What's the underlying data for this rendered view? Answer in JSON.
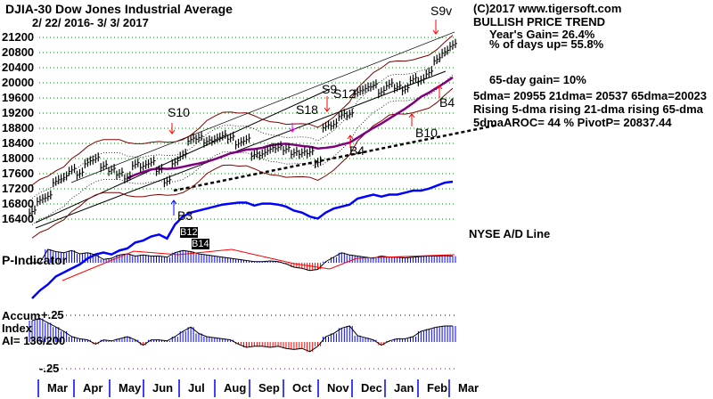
{
  "header": {
    "title": "DJIA-30  Dow Jones Industrial Average",
    "date_range": "2/ 22/ 2016- 3/ 3/ 2017"
  },
  "info": {
    "copyright": "(C)2017 www.tigersoft.com",
    "trend": "BULLISH PRICE TREND",
    "years_gain": "Year's Gain= 26.4%",
    "days_up": "% of days up= 55.8%",
    "gain65": "65-day gain= 10%",
    "dmas": "5dma= 20955 21dma= 20537 65dma=20023",
    "rising": "Rising 5-dma  rising 21-dma  rising 65-dma",
    "aroc": "5dmaAROC= 44 %  PivotP= 20837.44"
  },
  "labels": {
    "ad_line": "NYSE A/D Line",
    "p_indicator": "P-Indicator",
    "accum_1": "Accum",
    "accum_2": "Index",
    "accum_3": "AI= 136/200",
    "accum_top": "+.25",
    "accum_bottom": "-.25"
  },
  "signals": {
    "s10": "S10",
    "s9": "S9",
    "s12": "S12",
    "s18": "S18",
    "s9v": "S9v",
    "b3": "B3",
    "b4a": "B4",
    "b4b": "B4",
    "b10": "B10",
    "b12": "B12",
    "b14": "B14"
  },
  "colors": {
    "price": "#000000",
    "ma65": "#800080",
    "band": "#800000",
    "ad": "#0000ff",
    "pos": "#0000ff",
    "neg": "#ff0000",
    "grid": "#008000"
  },
  "chart_data": {
    "type": "line",
    "title": "DJIA-30  Dow Jones Industrial Average",
    "ylim": [
      16400,
      21200
    ],
    "yticks": [
      21200,
      20800,
      20400,
      20000,
      19600,
      19200,
      18800,
      18400,
      18000,
      17600,
      17200,
      16800,
      16400
    ],
    "months": [
      "Mar",
      "Apr",
      "May",
      "Jun",
      "Jul",
      "Aug",
      "Sep",
      "Oct",
      "Nov",
      "Dec",
      "Jan",
      "Feb",
      "Mar"
    ],
    "price": [
      16600,
      16900,
      17000,
      17400,
      17500,
      17700,
      17600,
      17900,
      18000,
      17800,
      17700,
      17600,
      17500,
      17850,
      17800,
      17900,
      17700,
      17400,
      17900,
      18100,
      18500,
      18550,
      18450,
      18500,
      18600,
      18550,
      18400,
      18500,
      18100,
      18120,
      18250,
      18300,
      18250,
      18150,
      18150,
      18170,
      17900,
      18850,
      18900,
      19150,
      19170,
      19750,
      19850,
      19930,
      19760,
      19960,
      19890,
      19830,
      20100,
      20070,
      20270,
      20620,
      20820,
      21000
    ],
    "ad_line": [
      0,
      8,
      14,
      22,
      26,
      30,
      34,
      40,
      44,
      46,
      44,
      48,
      50,
      56,
      58,
      62,
      64,
      60,
      74,
      82,
      86,
      88,
      90,
      92,
      94,
      95,
      96,
      96,
      93,
      95,
      95,
      94,
      92,
      88,
      86,
      82,
      80,
      86,
      90,
      92,
      94,
      100,
      102,
      104,
      102,
      104,
      104,
      106,
      108,
      108,
      110,
      113,
      116,
      117
    ],
    "p_indicator": [
      0,
      0,
      60,
      50,
      45,
      55,
      40,
      45,
      35,
      15,
      20,
      35,
      40,
      30,
      35,
      30,
      30,
      25,
      45,
      55,
      50,
      40,
      35,
      30,
      25,
      20,
      15,
      10,
      5,
      5,
      8,
      5,
      -5,
      -20,
      -25,
      -35,
      -30,
      5,
      25,
      45,
      35,
      30,
      25,
      20,
      30,
      25,
      25,
      22,
      25,
      28,
      30,
      30,
      32,
      30
    ],
    "accum_index": [
      0.2,
      0.22,
      0.18,
      0.14,
      0.1,
      0.05,
      0.03,
      0.02,
      -0.02,
      0.02,
      0.01,
      0.03,
      0.05,
      0.02,
      -0.03,
      0.02,
      0.02,
      0.01,
      0.05,
      0.1,
      0.14,
      0.08,
      0.05,
      0.04,
      0.03,
      0.02,
      -0.02,
      -0.05,
      -0.04,
      -0.04,
      -0.05,
      -0.04,
      -0.06,
      -0.07,
      -0.06,
      -0.09,
      -0.04,
      0.05,
      0.08,
      0.13,
      0.15,
      0.06,
      0.04,
      0.02,
      -0.03,
      0.01,
      0.03,
      0.03,
      0.05,
      0.1,
      0.12,
      0.14,
      0.15,
      0.15
    ]
  }
}
